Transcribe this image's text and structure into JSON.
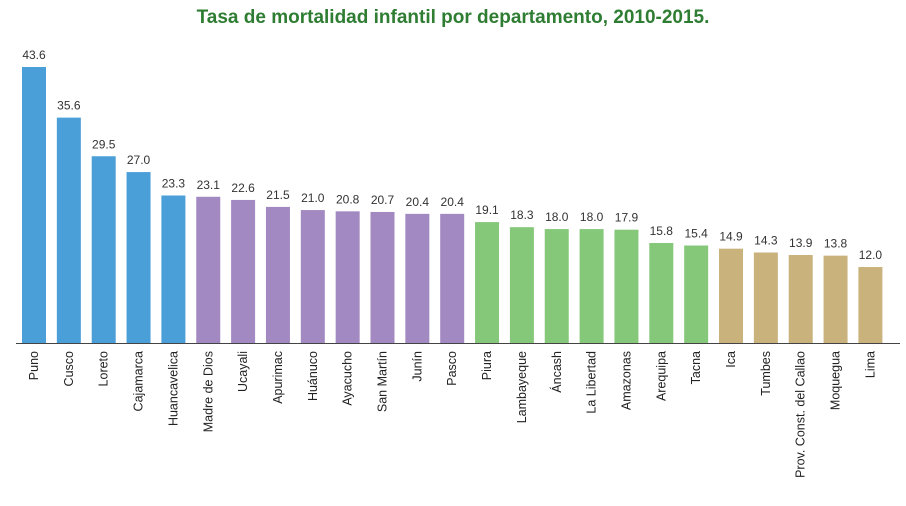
{
  "colors": {
    "title": "#2e7d32",
    "group1": "#4a9fd8",
    "group2": "#a389c1",
    "group3": "#86c87a",
    "group4": "#c9b27c",
    "axis": "#444444"
  },
  "chart_data": {
    "type": "bar",
    "title": "Tasa de mortalidad infantil por departamento, 2010-2015.",
    "xlabel": "",
    "ylabel": "",
    "ylim": [
      0,
      43.6
    ],
    "grid": false,
    "categories": [
      "Puno",
      "Cusco",
      "Loreto",
      "Cajamarca",
      "Huancavelica",
      "Madre de Dios",
      "Ucayali",
      "Apurimac",
      "Huánuco",
      "Ayacucho",
      "San Martín",
      "Junín",
      "Pasco",
      "Piura",
      "Lambayeque",
      "Áncash",
      "La Libertad",
      "Amazonas",
      "Arequipa",
      "Tacna",
      "Ica",
      "Tumbes",
      "Prov. Const. del Callao",
      "Moquegua",
      "Lima"
    ],
    "values": [
      43.6,
      35.6,
      29.5,
      27.0,
      23.3,
      23.1,
      22.6,
      21.5,
      21.0,
      20.8,
      20.7,
      20.4,
      20.4,
      19.1,
      18.3,
      18.0,
      18.0,
      17.9,
      15.8,
      15.4,
      14.9,
      14.3,
      13.9,
      13.8,
      12.0
    ],
    "value_labels": [
      "43.6",
      "35.6",
      "29.5",
      "27.0",
      "23.3",
      "23.1",
      "22.6",
      "21.5",
      "21.0",
      "20.8",
      "20.7",
      "20.4",
      "20.4",
      "19.1",
      "18.3",
      "18.0",
      "18.0",
      "17.9",
      "15.8",
      "15.4",
      "14.9",
      "14.3",
      "13.9",
      "13.8",
      "12.0"
    ],
    "color_groups": [
      "group1",
      "group1",
      "group1",
      "group1",
      "group1",
      "group2",
      "group2",
      "group2",
      "group2",
      "group2",
      "group2",
      "group2",
      "group2",
      "group3",
      "group3",
      "group3",
      "group3",
      "group3",
      "group3",
      "group3",
      "group4",
      "group4",
      "group4",
      "group4",
      "group4"
    ]
  }
}
